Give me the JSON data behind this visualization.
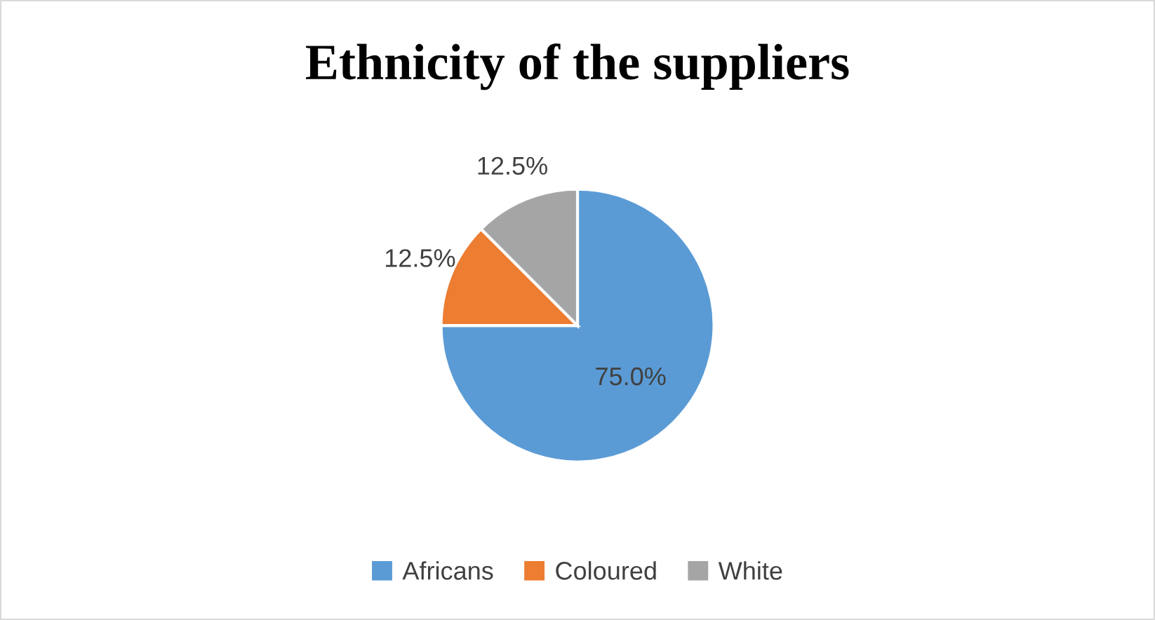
{
  "chart_data": {
    "type": "pie",
    "title": "Ethnicity of the suppliers",
    "categories": [
      "Africans",
      "Coloured",
      "White"
    ],
    "values": [
      75,
      12.5,
      12.5
    ],
    "colors": [
      "#5b9bd5",
      "#ed7d31",
      "#a5a5a5"
    ],
    "value_labels": [
      "75.0%",
      "12.5%",
      "12.5%"
    ],
    "legend": "bottom"
  }
}
